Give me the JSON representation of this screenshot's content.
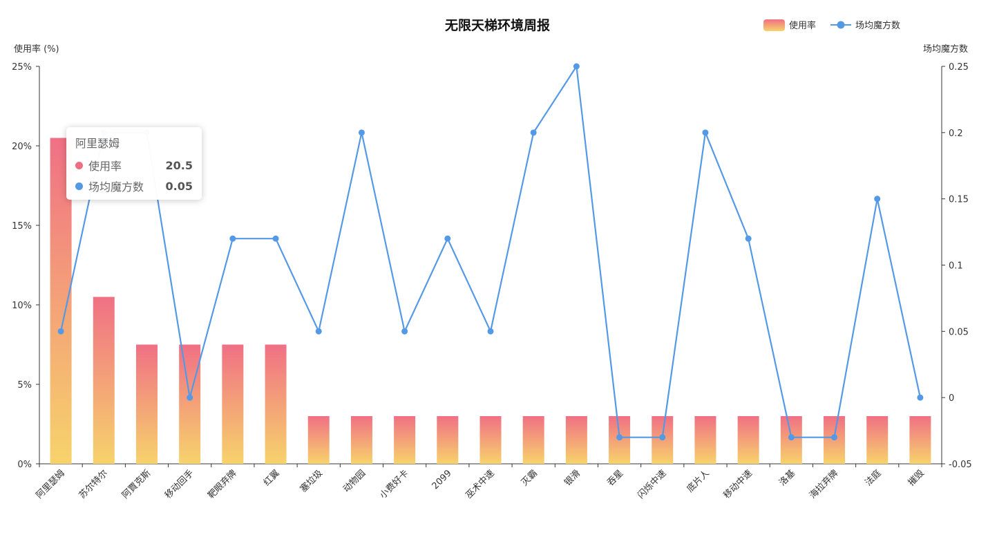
{
  "chart_data": {
    "type": "bar",
    "title": "无限天梯环境周报",
    "categories": [
      "阿里瑟姆",
      "苏尔特尔",
      "阿賈克斯",
      "移动回手",
      "靶眼弃牌",
      "红翼",
      "塞垃圾",
      "动物园",
      "小费好卡",
      "2099",
      "巫术中速",
      "灭霸",
      "银滑",
      "吞星",
      "闪烁中速",
      "底片人",
      "移动中速",
      "洛基",
      "海拉弃牌",
      "法庭",
      "摧毁"
    ],
    "y_left": {
      "name": "使用率 (%)",
      "ylim": [
        0,
        25
      ],
      "ticks": [
        "0%",
        "5%",
        "10%",
        "15%",
        "20%",
        "25%"
      ],
      "tick_values": [
        0,
        5,
        10,
        15,
        20,
        25
      ]
    },
    "y_right": {
      "name": "场均魔方数",
      "ylim": [
        -0.05,
        0.25
      ],
      "ticks": [
        "-0.05",
        "0",
        "0.05",
        "0.1",
        "0.15",
        "0.2",
        "0.25"
      ],
      "tick_values": [
        -0.05,
        0,
        0.05,
        0.1,
        0.15,
        0.2,
        0.25
      ]
    },
    "series": [
      {
        "name": "使用率",
        "type": "bar",
        "axis": "left",
        "values": [
          20.5,
          10.5,
          7.5,
          7.5,
          7.5,
          7.5,
          3,
          3,
          3,
          3,
          3,
          3,
          3,
          3,
          3,
          3,
          3,
          3,
          3,
          3,
          3
        ]
      },
      {
        "name": "场均魔方数",
        "type": "line",
        "axis": "right",
        "values": [
          0.05,
          0.2,
          0.2,
          0,
          0.12,
          0.12,
          0.05,
          0.2,
          0.05,
          0.12,
          0.05,
          0.2,
          0.25,
          -0.03,
          -0.03,
          0.2,
          0.12,
          -0.03,
          -0.03,
          0.15,
          0
        ]
      }
    ],
    "legend_position": "top-right",
    "grid": false
  },
  "colors": {
    "bar_top": "#f07085",
    "bar_bottom": "#f7d36b",
    "line": "#5499e6",
    "axis": "#333333"
  },
  "tooltip": {
    "title": "阿里瑟姆",
    "rows": [
      {
        "name": "使用率",
        "value": "20.5",
        "color": "#ee6e82"
      },
      {
        "name": "场均魔方数",
        "value": "0.05",
        "color": "#5499e6"
      }
    ]
  }
}
